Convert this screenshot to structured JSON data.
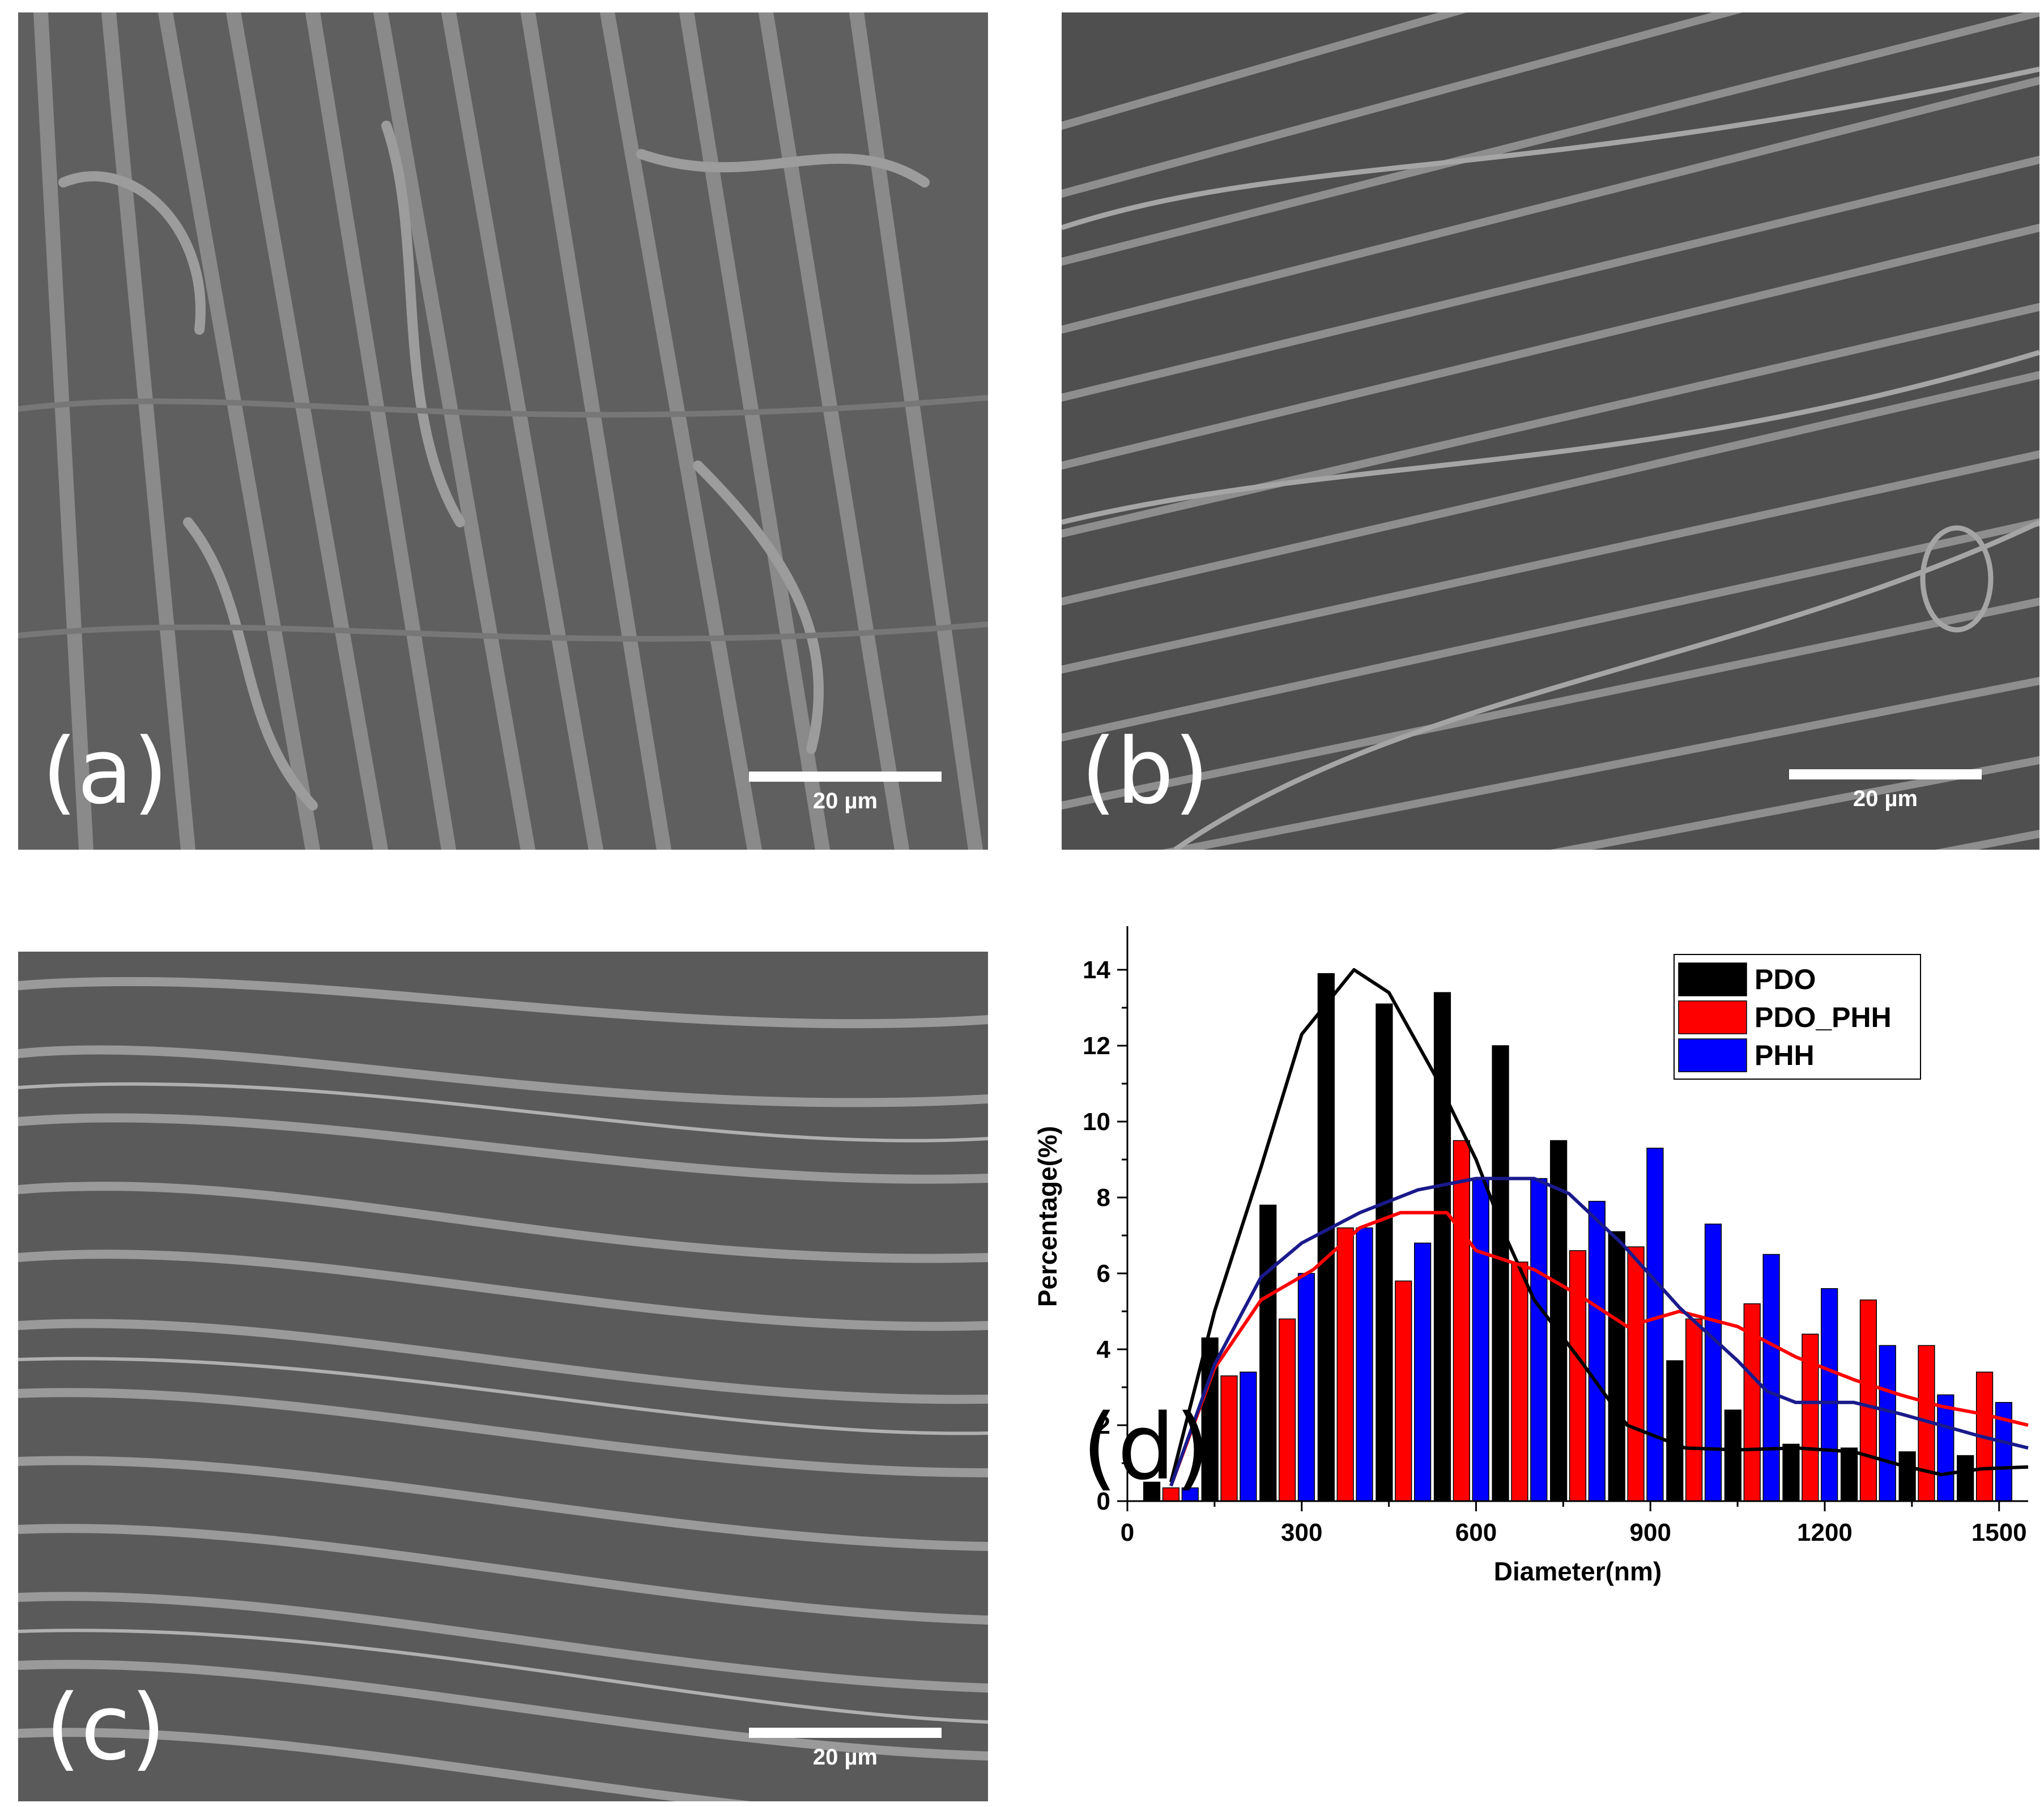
{
  "panels": {
    "a": {
      "label": "(a)",
      "scale_bar": "20 µm"
    },
    "b": {
      "label": "(b)",
      "scale_bar": "20 µm"
    },
    "c": {
      "label": "(c)",
      "scale_bar": "20 µm"
    },
    "d": {
      "label": "(d)"
    }
  },
  "colors": {
    "PDO": "#000000",
    "PDO_PHH": "#ff0000",
    "PHH": "#0000ff",
    "PHH_curve": "#1a1a8c"
  },
  "chart_data": {
    "type": "bar",
    "xlabel": "Diameter(nm)",
    "ylabel": "Percentage(%)",
    "xlim": [
      0,
      1550
    ],
    "ylim": [
      0,
      15
    ],
    "x_ticks": [
      0,
      300,
      600,
      900,
      1200,
      1500
    ],
    "y_ticks": [
      0,
      2,
      4,
      6,
      8,
      10,
      12,
      14
    ],
    "legend_position": "top-right",
    "categories": [
      75,
      175,
      275,
      375,
      475,
      575,
      675,
      775,
      875,
      975,
      1075,
      1175,
      1275,
      1375,
      1475
    ],
    "series": [
      {
        "name": "PDO",
        "values": [
          0.5,
          4.3,
          7.8,
          13.9,
          13.1,
          13.4,
          12.0,
          9.5,
          7.1,
          3.7,
          2.4,
          1.5,
          1.4,
          1.3,
          1.2
        ]
      },
      {
        "name": "PDO_PHH",
        "values": [
          0.35,
          3.3,
          4.8,
          7.2,
          5.8,
          9.5,
          6.3,
          6.6,
          6.7,
          4.8,
          5.2,
          4.4,
          5.3,
          4.1,
          3.4
        ]
      },
      {
        "name": "PHH",
        "values": [
          0.35,
          3.4,
          6.0,
          7.2,
          6.8,
          8.5,
          8.5,
          7.9,
          9.3,
          7.3,
          6.5,
          5.6,
          4.1,
          2.8,
          2.6
        ]
      }
    ],
    "fit_curves": [
      {
        "series": "PDO",
        "x": [
          75,
          150,
          230,
          300,
          390,
          450,
          530,
          600,
          650,
          700,
          780,
          860,
          960,
          1050,
          1150,
          1250,
          1330,
          1400,
          1470,
          1550
        ],
        "y": [
          0.5,
          5.0,
          8.8,
          12.3,
          14.0,
          13.4,
          11.2,
          9.0,
          7.0,
          5.3,
          3.7,
          2.0,
          1.4,
          1.35,
          1.4,
          1.3,
          0.95,
          0.7,
          0.85,
          0.9
        ]
      },
      {
        "series": "PDO_PHH",
        "x": [
          75,
          150,
          230,
          320,
          400,
          470,
          550,
          600,
          700,
          780,
          860,
          950,
          1050,
          1100,
          1150,
          1250,
          1330,
          1400,
          1470,
          1550
        ],
        "y": [
          0.4,
          3.5,
          5.3,
          6.1,
          7.2,
          7.6,
          7.6,
          6.6,
          6.1,
          5.4,
          4.6,
          5.0,
          4.6,
          4.2,
          3.8,
          3.2,
          2.8,
          2.5,
          2.3,
          2.0
        ]
      },
      {
        "series": "PHH",
        "x": [
          75,
          150,
          230,
          300,
          400,
          500,
          600,
          700,
          760,
          850,
          950,
          1050,
          1100,
          1150,
          1250,
          1330,
          1400,
          1470,
          1550
        ],
        "y": [
          0.4,
          3.6,
          5.9,
          6.8,
          7.6,
          8.2,
          8.5,
          8.5,
          8.1,
          6.8,
          5.1,
          3.7,
          2.9,
          2.6,
          2.6,
          2.3,
          2.0,
          1.7,
          1.4
        ]
      }
    ]
  }
}
